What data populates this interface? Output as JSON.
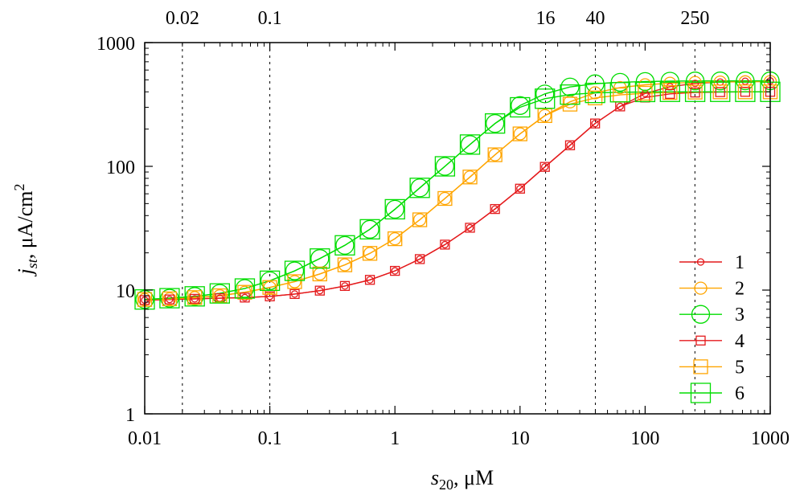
{
  "chart_data": {
    "type": "line",
    "xscale": "log",
    "yscale": "log",
    "xlim": [
      0.01,
      1000
    ],
    "ylim": [
      1,
      1000
    ],
    "xticks": [
      "0.01",
      "0.1",
      "1",
      "10",
      "100",
      "1000"
    ],
    "yticks": [
      "1",
      "10",
      "100",
      "1000"
    ],
    "top_ticks": [
      "0.02",
      "0.1",
      "16",
      "40",
      "250"
    ],
    "xlabel": {
      "main": "s",
      "sub": "20",
      "unit": ", μM"
    },
    "ylabel": {
      "main": "j",
      "sub": "st",
      "unit": ", μA/cm",
      "sup": "2"
    },
    "reference_lines_x": [
      0.02,
      0.1,
      16,
      40,
      250
    ],
    "legend_position": "bottom-right",
    "x": [
      0.01,
      0.0158,
      0.0251,
      0.0398,
      0.0631,
      0.1,
      0.158,
      0.251,
      0.398,
      0.631,
      1,
      1.58,
      2.51,
      3.98,
      6.31,
      10,
      15.8,
      25.1,
      39.8,
      63.1,
      100,
      158,
      251,
      398,
      631,
      1000
    ],
    "series": [
      {
        "name": "1",
        "color": "#e41a1c",
        "marker": "small-circle",
        "values": [
          8.3,
          8.4,
          8.5,
          8.6,
          8.7,
          8.9,
          9.3,
          9.9,
          10.8,
          12.1,
          14.3,
          17.8,
          23.3,
          31.9,
          45.2,
          66,
          99,
          148,
          222,
          305,
          388,
          440,
          468,
          480,
          487,
          490
        ]
      },
      {
        "name": "2",
        "color": "#ffa500",
        "marker": "circle",
        "values": [
          8.4,
          8.5,
          8.7,
          9.0,
          9.6,
          10.5,
          11.7,
          13.5,
          16.0,
          19.8,
          26,
          37,
          55,
          82,
          124,
          183,
          257,
          332,
          393,
          433,
          456,
          469,
          476,
          480,
          482,
          484
        ]
      },
      {
        "name": "3",
        "color": "#00dd00",
        "marker": "large-circle",
        "values": [
          8.4,
          8.6,
          8.9,
          9.4,
          10.3,
          11.9,
          14.3,
          18,
          23,
          31,
          45,
          67,
          100,
          150,
          222,
          310,
          385,
          438,
          465,
          478,
          485,
          488,
          490,
          490,
          491,
          491
        ]
      },
      {
        "name": "4",
        "color": "#e41a1c",
        "marker": "small-square",
        "values": [
          8.3,
          8.4,
          8.5,
          8.6,
          8.7,
          8.9,
          9.3,
          9.9,
          10.8,
          12.1,
          14.3,
          17.8,
          23.3,
          31.9,
          45.2,
          66,
          99,
          148,
          222,
          305,
          360,
          385,
          395,
          398,
          400,
          400
        ]
      },
      {
        "name": "5",
        "color": "#ffa500",
        "marker": "square",
        "values": [
          8.4,
          8.5,
          8.7,
          9.0,
          9.6,
          10.5,
          11.7,
          13.5,
          16.0,
          19.8,
          26,
          37,
          55,
          82,
          124,
          183,
          257,
          318,
          357,
          378,
          390,
          395,
          398,
          400,
          400,
          400
        ]
      },
      {
        "name": "6",
        "color": "#00dd00",
        "marker": "large-square",
        "values": [
          8.4,
          8.6,
          8.9,
          9.4,
          10.3,
          11.9,
          14.3,
          18,
          23,
          31,
          45,
          67,
          100,
          150,
          222,
          300,
          352,
          380,
          392,
          397,
          399,
          400,
          400,
          400,
          400,
          400
        ]
      }
    ]
  }
}
